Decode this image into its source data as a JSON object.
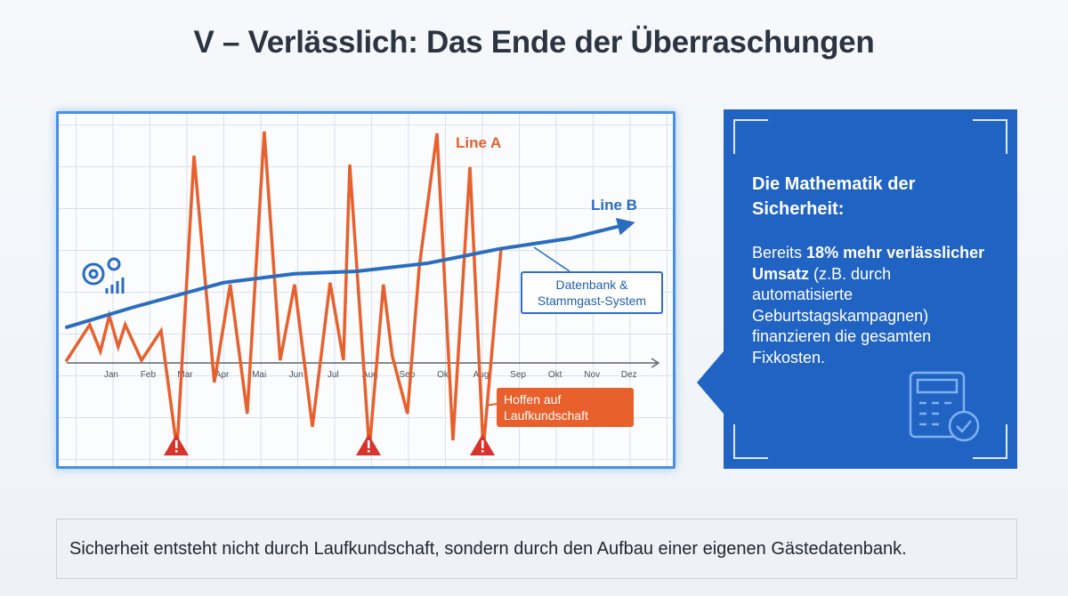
{
  "title": "V – Verlässlich: Das Ende der Überraschungen",
  "chart_data": {
    "type": "line",
    "categories": [
      "Jan",
      "Feb",
      "Mar",
      "Apr",
      "Mai",
      "Jun",
      "Jul",
      "Aug",
      "Sep",
      "Okt",
      "Aug",
      "Sep",
      "Okt",
      "Nov",
      "Dez"
    ],
    "xlim": [
      -1.2,
      14.8
    ],
    "ylim": [
      0,
      100
    ],
    "series": [
      {
        "name": "Line A",
        "color": "#e8602c",
        "x": [
          -1.2,
          -0.58,
          -0.29,
          -0.05,
          0.19,
          0.38,
          0.82,
          1.35,
          1.78,
          2.24,
          2.79,
          3.22,
          3.68,
          4.14,
          4.57,
          4.96,
          5.44,
          5.92,
          6.28,
          6.45,
          6.98,
          7.36,
          7.6,
          8.01,
          8.33,
          8.81,
          9.24,
          9.7,
          10.06,
          10.54
        ],
        "values": [
          30,
          40,
          32.5,
          42.5,
          33.8,
          40,
          30,
          38.3,
          5,
          87.5,
          23.8,
          51.3,
          15,
          94.3,
          30,
          51.3,
          11.3,
          51.8,
          30,
          85,
          5,
          51.3,
          31.3,
          15,
          56.3,
          93.8,
          7.5,
          84.3,
          5,
          61.3
        ]
      },
      {
        "name": "Line B",
        "color": "#2a6cc0",
        "x": [
          -1.2,
          0.63,
          3.03,
          4.96,
          6.64,
          8.57,
          10.49,
          12.42,
          13.98
        ],
        "values": [
          39.3,
          45,
          51.8,
          54.3,
          55,
          57.3,
          61.3,
          64.3,
          68.3
        ]
      }
    ],
    "annotations": [
      "Datenbank & Stammgast-System",
      "Hoffen auf Laufkundschaft"
    ]
  },
  "panel": {
    "heading": "Die Mathematik der Sicherheit:",
    "body": [
      "Bereits",
      "18% mehr verlässlicher Umsatz",
      "(z.B. durch automatisierte Geburtstagskampagnen) finanzieren die gesamten Fixkosten."
    ]
  },
  "footer": "Sicherheit entsteht nicht durch Laufkundschaft, sondern durch den Aufbau einer eigenen Gästedatenbank."
}
